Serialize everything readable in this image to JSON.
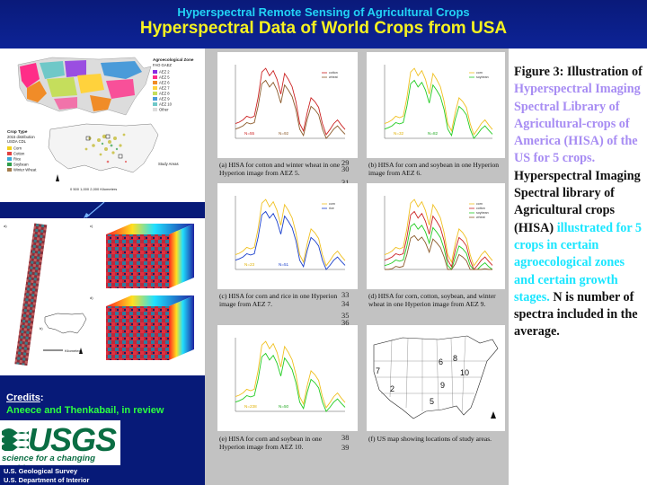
{
  "header": {
    "supertitle": "Hyperspectral Remote Sensing of Agricultural Crops",
    "title": "Hyperspectral Data of World Crops from USA",
    "colors": {
      "supertitle": "#22d3f5",
      "title": "#f6f220",
      "background": "#0c2396"
    }
  },
  "left_panel": {
    "map": {
      "legend_zone_title": "Agroecological Zone",
      "legend_zone_subtitle": "FAO GAEZ",
      "zones": [
        "AEZ 2",
        "AEZ 5",
        "AEZ 6",
        "AEZ 7",
        "AEZ 8",
        "AEZ 9",
        "AEZ 10",
        "Other"
      ],
      "zone_colors": [
        "#8a2be2",
        "#ff2d88",
        "#f08c28",
        "#ffd23c",
        "#c5de5c",
        "#4a9bd9",
        "#6fc8c8",
        "#dddddd"
      ],
      "legend_crop_title": "Crop Type",
      "legend_crop_subtitle_1": "2015 distribution",
      "legend_crop_subtitle_2": "USDA CDL",
      "crops": [
        "Corn",
        "Cotton",
        "Rice",
        "Soybean",
        "Winter Wheat"
      ],
      "crop_colors": [
        "#f2d21b",
        "#e04040",
        "#3aa8d8",
        "#2e9e4a",
        "#a37c4b"
      ],
      "study_areas_label": "Study Areas",
      "scale_bar": "0   500 1,000    2,000 Kilometers"
    },
    "cube_panel": {
      "labels": [
        "a)",
        "b)",
        "c)",
        "d)"
      ],
      "scale_bar": "Kilometers"
    },
    "credits_label": "Credits",
    "credits_colon": ":",
    "credits_authors": "Aneece and Thenkabail, in review",
    "logo_text": "USGS",
    "logo_tagline": "science for a changing world",
    "agency_line_1": "U.S. Geological Survey",
    "agency_line_2": "U.S. Department of Interior"
  },
  "subfigures": [
    {
      "id": "a",
      "caption": "(a) HISA for cotton and winter wheat in one Hyperion image from AEZ 5.",
      "n_labels": [
        "N=55",
        "N=92"
      ],
      "n_colors": [
        "#cc2222",
        "#8b5a2b"
      ],
      "series_colors": [
        "#cc2222",
        "#8b5a2b"
      ],
      "legend": [
        "cotton",
        "wheat"
      ]
    },
    {
      "id": "b",
      "caption": "(b) HISA for corn and soybean in one Hyperion image from AEZ 6.",
      "n_labels": [
        "N=32",
        "N=82"
      ],
      "n_colors": [
        "#e0b000",
        "#22aa22"
      ],
      "series_colors": [
        "#f0c020",
        "#22cc22"
      ],
      "legend": [
        "corn",
        "soybean"
      ]
    },
    {
      "id": "c",
      "caption": "(c) HISA for corn and rice in one Hyperion image from AEZ 7.",
      "n_labels": [
        "N=23",
        "N=51"
      ],
      "n_colors": [
        "#e0b000",
        "#1a3fcc"
      ],
      "series_colors": [
        "#f0c020",
        "#1a3fcc"
      ],
      "legend": [
        "corn",
        "rice"
      ]
    },
    {
      "id": "d",
      "caption": "(d) HISA for corn, cotton, soybean, and winter wheat in one Hyperion image from AEZ 9.",
      "n_labels": [],
      "n_colors": [],
      "series_colors": [
        "#f0c020",
        "#cc2222",
        "#22cc22",
        "#8b5a2b"
      ],
      "legend": [
        "corn",
        "cotton",
        "soybean",
        "wheat"
      ]
    },
    {
      "id": "e",
      "caption": "(e) HISA for corn and soybean in one Hyperion image from AEZ 10.",
      "n_labels": [
        "N=238",
        "N=50"
      ],
      "n_colors": [
        "#e0b000",
        "#22aa22"
      ],
      "series_colors": [
        "#f0c020",
        "#22cc22"
      ],
      "legend": []
    },
    {
      "id": "f",
      "caption": "(f) US map showing locations of study areas.",
      "map_labels": [
        "7",
        "6",
        "8",
        "10",
        "9",
        "2",
        "5"
      ]
    }
  ],
  "line_numbers": {
    "a": [
      "29",
      "30",
      "31"
    ],
    "c": [
      "33",
      "34",
      "35",
      "36"
    ],
    "e": [
      "38",
      "39"
    ]
  },
  "figure_caption": {
    "label": "Figure 3:",
    "intro": "Illustration of",
    "purple_text": "Hyperspectral Imaging Spectral Library of Agricultural-crops of America (HISA) of the US for 5 crops.",
    "black_text_1": "Hyperspectral Imaging Spectral library of Agricultural crops (HISA)",
    "cyan_text": "illustrated for 5 crops in certain agroecological zones and certain growth stages.",
    "black_text_2": "N is number of spectra included in the average."
  }
}
